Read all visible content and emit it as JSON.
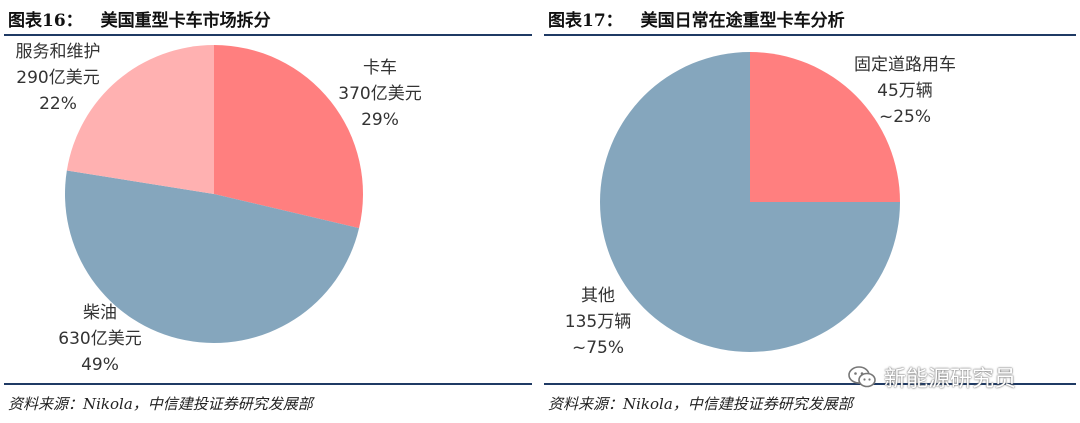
{
  "source_text": "资料来源：Nikola，中信建投证券研究发展部",
  "watermark": {
    "text": "新能源研究员",
    "icon": "wechat-icon"
  },
  "colors": {
    "salmon": "#ff7f7f",
    "pink": "#ffb1b1",
    "slate_blue": "#85a6bd",
    "rule": "#1f3a64"
  },
  "chart_data": [
    {
      "type": "pie",
      "figure_number": "图表16：",
      "title": "美国重型卡车市场拆分",
      "unit": "亿美元",
      "slices": [
        {
          "name": "卡车",
          "value": 370,
          "amount_label": "370亿美元",
          "percent_label": "29%",
          "color": "#ff7f7f"
        },
        {
          "name": "柴油",
          "value": 630,
          "amount_label": "630亿美元",
          "percent_label": "49%",
          "color": "#85a6bd"
        },
        {
          "name": "服务和维护",
          "value": 290,
          "amount_label": "290亿美元",
          "percent_label": "22%",
          "color": "#ffb1b1"
        }
      ]
    },
    {
      "type": "pie",
      "figure_number": "图表17：",
      "title": "美国日常在途重型卡车分析",
      "unit": "万辆",
      "slices": [
        {
          "name": "固定道路用车",
          "value": 45,
          "amount_label": "45万辆",
          "percent_label": "~25%",
          "color": "#ff7f7f"
        },
        {
          "name": "其他",
          "value": 135,
          "amount_label": "135万辆",
          "percent_label": "~75%",
          "color": "#85a6bd"
        }
      ]
    }
  ]
}
